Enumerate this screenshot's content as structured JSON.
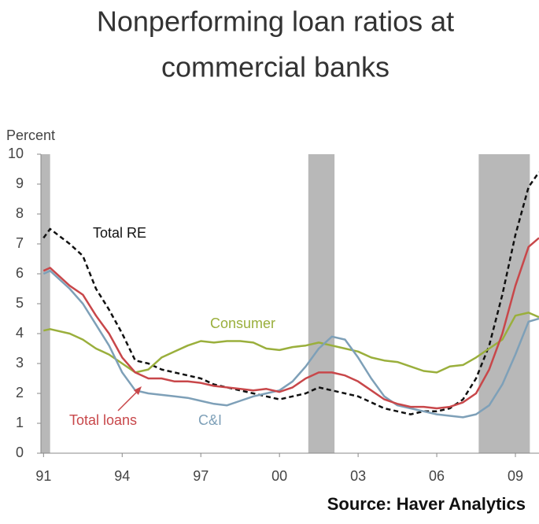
{
  "chart_data": {
    "type": "line",
    "title_lines": [
      "Nonperforming loan ratios at",
      "commercial banks"
    ],
    "y_label": "Percent",
    "source": "Source: Haver Analytics",
    "xlim": [
      1990.9,
      2009.9
    ],
    "xticks": [
      {
        "value": 1991,
        "label": "91"
      },
      {
        "value": 1994,
        "label": "94"
      },
      {
        "value": 1997,
        "label": "97"
      },
      {
        "value": 2000,
        "label": "00"
      },
      {
        "value": 2003,
        "label": "03"
      },
      {
        "value": 2006,
        "label": "06"
      },
      {
        "value": 2009,
        "label": "09"
      }
    ],
    "ylim": [
      0,
      10
    ],
    "yticks": [
      0,
      1,
      2,
      3,
      4,
      5,
      6,
      7,
      8,
      9,
      10
    ],
    "shaded_periods": [
      [
        1990.9,
        1991.25
      ],
      [
        2001.1,
        2002.1
      ],
      [
        2007.6,
        2009.55
      ]
    ],
    "shade_color": "#b8b8b8",
    "x": [
      1991,
      1991.25,
      1992,
      1992.5,
      1993,
      1993.5,
      1994,
      1994.5,
      1995,
      1995.5,
      1996,
      1996.5,
      1997,
      1997.5,
      1998,
      1998.5,
      1999,
      1999.5,
      2000,
      2000.5,
      2001,
      2001.5,
      2002,
      2002.5,
      2003,
      2003.5,
      2004,
      2004.5,
      2005,
      2005.5,
      2006,
      2006.5,
      2007,
      2007.5,
      2008,
      2008.5,
      2009,
      2009.5,
      2009.9
    ],
    "series": [
      {
        "name": "Total RE",
        "color": "#111111",
        "dashed": true,
        "values": [
          7.2,
          7.5,
          7.0,
          6.6,
          5.5,
          4.8,
          4.0,
          3.1,
          3.0,
          2.8,
          2.7,
          2.6,
          2.5,
          2.3,
          2.2,
          2.1,
          2.0,
          1.9,
          1.8,
          1.9,
          2.0,
          2.2,
          2.1,
          2.0,
          1.9,
          1.7,
          1.5,
          1.4,
          1.3,
          1.4,
          1.4,
          1.5,
          1.8,
          2.5,
          3.6,
          5.3,
          7.3,
          8.9,
          9.4
        ]
      },
      {
        "name": "Consumer",
        "color": "#9aaf3c",
        "dashed": false,
        "values": [
          4.1,
          4.15,
          4.0,
          3.8,
          3.5,
          3.3,
          3.0,
          2.7,
          2.8,
          3.2,
          3.4,
          3.6,
          3.75,
          3.7,
          3.75,
          3.75,
          3.7,
          3.5,
          3.45,
          3.55,
          3.6,
          3.7,
          3.6,
          3.5,
          3.4,
          3.2,
          3.1,
          3.05,
          2.9,
          2.75,
          2.7,
          2.9,
          2.95,
          3.2,
          3.5,
          3.8,
          4.6,
          4.7,
          4.55
        ]
      },
      {
        "name": "C&I",
        "color": "#7ea0b8",
        "dashed": false,
        "values": [
          6.0,
          6.1,
          5.5,
          5.0,
          4.3,
          3.6,
          2.7,
          2.1,
          2.0,
          1.95,
          1.9,
          1.85,
          1.75,
          1.65,
          1.6,
          1.75,
          1.9,
          2.0,
          2.1,
          2.4,
          2.9,
          3.5,
          3.9,
          3.8,
          3.2,
          2.5,
          1.9,
          1.6,
          1.5,
          1.4,
          1.3,
          1.25,
          1.2,
          1.3,
          1.6,
          2.3,
          3.3,
          4.4,
          4.5
        ]
      },
      {
        "name": "Total loans",
        "color": "#c8474a",
        "dashed": false,
        "values": [
          6.1,
          6.2,
          5.6,
          5.3,
          4.6,
          4.0,
          3.2,
          2.7,
          2.5,
          2.5,
          2.4,
          2.4,
          2.35,
          2.25,
          2.2,
          2.15,
          2.1,
          2.15,
          2.05,
          2.2,
          2.5,
          2.7,
          2.7,
          2.6,
          2.4,
          2.1,
          1.8,
          1.65,
          1.55,
          1.55,
          1.5,
          1.55,
          1.7,
          2.0,
          2.8,
          4.0,
          5.6,
          6.9,
          7.2
        ]
      }
    ]
  }
}
